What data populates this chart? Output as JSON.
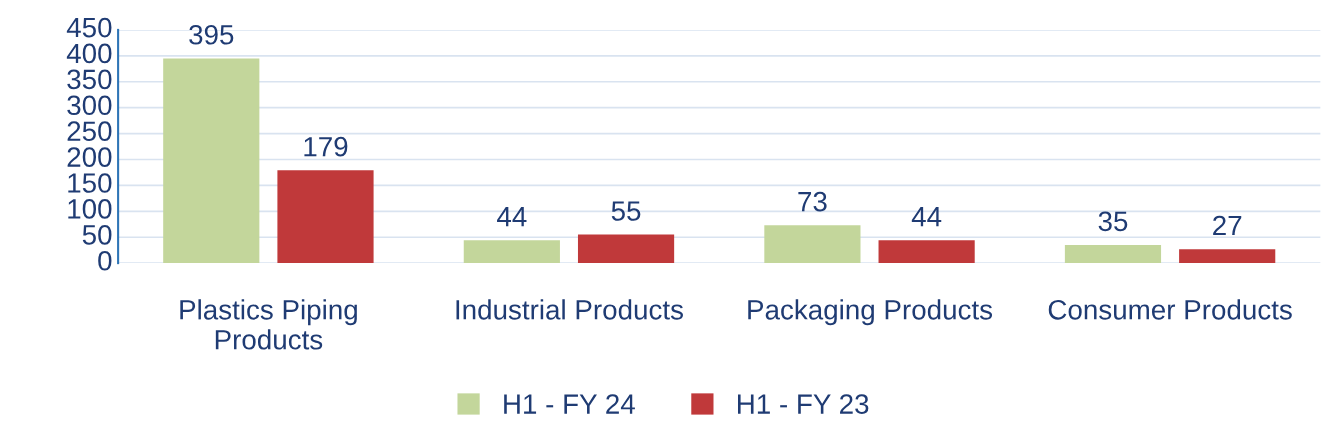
{
  "chart_data": {
    "type": "bar",
    "categories": [
      "Plastics Piping Products",
      "Industrial Products",
      "Packaging Products",
      "Consumer Products"
    ],
    "series": [
      {
        "name": "H1 - FY 24",
        "color": "#c3d69b",
        "values": [
          395,
          44,
          73,
          35
        ]
      },
      {
        "name": "H1 - FY 23",
        "color": "#c0393a",
        "values": [
          179,
          55,
          44,
          27
        ]
      }
    ],
    "ylim": [
      0,
      450
    ],
    "yticks": [
      0,
      50,
      100,
      150,
      200,
      250,
      300,
      350,
      400,
      450
    ],
    "grid": "y",
    "legend": "bottom",
    "data_labels": true
  }
}
